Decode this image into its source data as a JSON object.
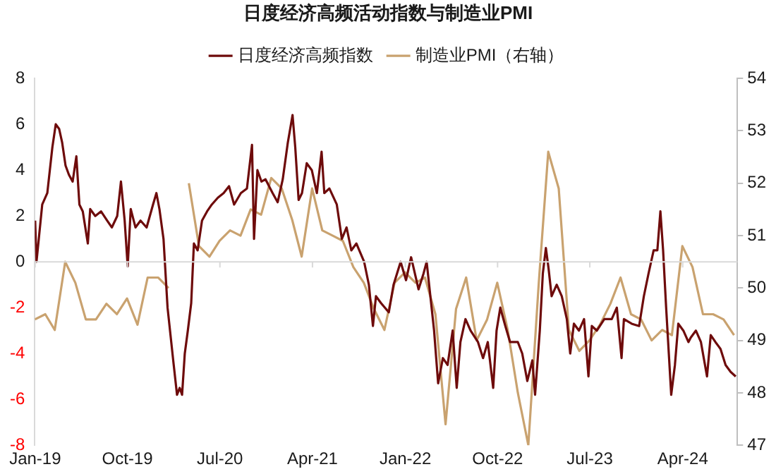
{
  "chart_data": {
    "type": "line",
    "title": "日度经济高频活动指数与制造业PMI",
    "legend": "top",
    "grid": false,
    "marker": "none",
    "line_style": "solid",
    "xlim": [
      "2018-12-31",
      "2024-09-10"
    ],
    "xticks": [
      {
        "value": "2019-01-01",
        "label": "Jan-19"
      },
      {
        "value": "2019-10-01",
        "label": "Oct-19"
      },
      {
        "value": "2020-07-01",
        "label": "Jul-20"
      },
      {
        "value": "2021-04-01",
        "label": "Apr-21"
      },
      {
        "value": "2022-01-01",
        "label": "Jan-22"
      },
      {
        "value": "2022-10-01",
        "label": "Oct-22"
      },
      {
        "value": "2023-07-01",
        "label": "Jul-23"
      },
      {
        "value": "2024-04-01",
        "label": "Apr-24"
      }
    ],
    "ref_lines": [
      {
        "axis": "y",
        "value": 0,
        "color": "#d9d9d9"
      }
    ],
    "ylim": [
      -8,
      8
    ],
    "yticks": [
      -8,
      -6,
      -4,
      -2,
      0,
      2,
      4,
      6,
      8
    ],
    "y2lim": [
      47,
      54
    ],
    "y2ticks": [
      47,
      48,
      49,
      50,
      51,
      52,
      53,
      54
    ],
    "series": [
      {
        "name": "日度经济高频指数",
        "color": "#6e0b0b",
        "x": [
          "2019-01-01",
          "2019-01-05",
          "2019-01-22",
          "2019-02-06",
          "2019-02-21",
          "2019-03-03",
          "2019-03-13",
          "2019-03-22",
          "2019-04-01",
          "2019-04-11",
          "2019-04-22",
          "2019-05-03",
          "2019-05-12",
          "2019-05-22",
          "2019-06-06",
          "2019-06-13",
          "2019-06-28",
          "2019-07-15",
          "2019-08-02",
          "2019-08-16",
          "2019-09-01",
          "2019-09-12",
          "2019-09-23",
          "2019-10-02",
          "2019-10-11",
          "2019-10-25",
          "2019-11-09",
          "2019-11-27",
          "2019-12-16",
          "2019-12-26",
          "2020-01-04",
          "2020-01-16",
          "2020-01-28",
          "2020-02-13",
          "2020-02-25",
          "2020-03-04",
          "2020-03-11",
          "2020-03-19",
          "2020-03-28",
          "2020-04-07",
          "2020-04-15",
          "2020-04-26",
          "2020-05-09",
          "2020-05-24",
          "2020-06-07",
          "2020-06-25",
          "2020-07-12",
          "2020-07-28",
          "2020-08-12",
          "2020-09-01",
          "2020-09-19",
          "2020-10-04",
          "2020-10-10",
          "2020-10-20",
          "2020-11-01",
          "2020-11-13",
          "2020-12-04",
          "2020-12-19",
          "2021-01-03",
          "2021-01-18",
          "2021-02-01",
          "2021-02-09",
          "2021-02-19",
          "2021-03-01",
          "2021-03-15",
          "2021-03-30",
          "2021-04-14",
          "2021-04-28",
          "2021-05-06",
          "2021-05-21",
          "2021-06-12",
          "2021-06-27",
          "2021-07-11",
          "2021-07-25",
          "2021-08-09",
          "2021-09-01",
          "2021-09-15",
          "2021-09-27",
          "2021-10-06",
          "2021-10-21",
          "2021-11-13",
          "2021-11-27",
          "2021-12-18",
          "2022-01-03",
          "2022-01-18",
          "2022-02-09",
          "2022-02-24",
          "2022-03-05",
          "2022-03-16",
          "2022-03-27",
          "2022-04-08",
          "2022-04-22",
          "2022-05-06",
          "2022-05-21",
          "2022-06-02",
          "2022-06-13",
          "2022-06-28",
          "2022-07-13",
          "2022-08-04",
          "2022-08-19",
          "2022-09-02",
          "2022-09-18",
          "2022-09-28",
          "2022-10-09",
          "2022-10-24",
          "2022-11-07",
          "2022-11-30",
          "2022-12-13",
          "2022-12-28",
          "2023-01-12",
          "2023-01-20",
          "2023-02-03",
          "2023-02-12",
          "2023-02-21",
          "2023-03-01",
          "2023-03-10",
          "2023-03-25",
          "2023-04-09",
          "2023-04-24",
          "2023-05-04",
          "2023-05-15",
          "2023-05-30",
          "2023-06-14",
          "2023-06-27",
          "2023-07-07",
          "2023-07-22",
          "2023-08-13",
          "2023-09-04",
          "2023-09-19",
          "2023-10-03",
          "2023-10-10",
          "2023-11-02",
          "2023-11-24",
          "2023-12-08",
          "2023-12-22",
          "2024-01-06",
          "2024-01-17",
          "2024-01-26",
          "2024-02-03",
          "2024-02-12",
          "2024-02-27",
          "2024-03-09",
          "2024-03-19",
          "2024-04-03",
          "2024-04-18",
          "2024-04-25",
          "2024-05-10",
          "2024-05-25",
          "2024-06-12",
          "2024-06-23",
          "2024-07-07",
          "2024-07-22",
          "2024-08-06",
          "2024-08-21",
          "2024-09-05"
        ],
        "values": [
          1.8,
          0,
          2.5,
          3,
          5,
          6,
          5.8,
          5.2,
          4.2,
          3.8,
          3.5,
          4.6,
          2.5,
          2.2,
          0.8,
          2.3,
          2,
          2.2,
          1.8,
          1.5,
          2,
          3.5,
          1.8,
          -0.2,
          2.3,
          1.5,
          1.8,
          1.5,
          2.5,
          3,
          2.3,
          1,
          -2,
          -4.2,
          -5.8,
          -5.5,
          -5.8,
          -4,
          -3,
          -1.8,
          0.8,
          0.5,
          1.8,
          2.2,
          2.5,
          2.8,
          3,
          3.3,
          2.5,
          3,
          3.2,
          5.1,
          1,
          4,
          3.5,
          3.6,
          3,
          2.6,
          3.6,
          5.2,
          6.4,
          5,
          2.7,
          3,
          4.3,
          4,
          3,
          4.8,
          3,
          3.2,
          2.5,
          1,
          1.5,
          0.5,
          0.8,
          0,
          -1,
          -2.8,
          -1.5,
          -1.8,
          -2.2,
          -1,
          0,
          -0.8,
          0.2,
          -1.2,
          -0.5,
          0,
          -1.5,
          -3,
          -5.3,
          -4.2,
          -4.5,
          -3,
          -5.5,
          -3.5,
          -2.5,
          -3,
          -3.5,
          -4.2,
          -3.5,
          -5.5,
          -3,
          -2,
          -2.8,
          -3.5,
          -3.5,
          -4,
          -5.2,
          -4.3,
          -5.8,
          -3,
          -0.5,
          0.6,
          -0.3,
          -1.5,
          -1,
          -1.5,
          -2.5,
          -4,
          -2.7,
          -3,
          -2.5,
          -5,
          -2.8,
          -3,
          -2.5,
          -2.5,
          -2,
          -4.2,
          -2.5,
          -2.7,
          -2.8,
          -1.5,
          -0.5,
          0.5,
          0.5,
          2.2,
          0.5,
          -2,
          -5.8,
          -4.5,
          -2.7,
          -3,
          -3.5,
          -3.3,
          -3,
          -3.5,
          -5,
          -3.2,
          -3.5,
          -3.8,
          -4.5,
          -4.8,
          -5
        ]
      },
      {
        "name": "制造业PMI（右轴）",
        "color": "#c9a26f",
        "axis": "y2",
        "x": [
          "2018-12-31",
          "2019-01-31",
          "2019-02-28",
          "2019-03-31",
          "2019-04-30",
          "2019-05-31",
          "2019-06-30",
          "2019-07-31",
          "2019-08-31",
          "2019-09-30",
          "2019-10-31",
          "2019-11-30",
          "2019-12-31",
          "2020-01-31",
          "2020-02-29",
          "2020-03-31",
          "2020-04-30",
          "2020-05-31",
          "2020-06-30",
          "2020-07-31",
          "2020-08-31",
          "2020-09-30",
          "2020-10-31",
          "2020-11-30",
          "2020-12-31",
          "2021-01-31",
          "2021-02-28",
          "2021-03-31",
          "2021-04-30",
          "2021-05-31",
          "2021-06-30",
          "2021-07-31",
          "2021-08-31",
          "2021-09-30",
          "2021-10-31",
          "2021-11-30",
          "2021-12-31",
          "2022-01-31",
          "2022-02-28",
          "2022-03-31",
          "2022-04-30",
          "2022-05-31",
          "2022-06-30",
          "2022-07-31",
          "2022-08-31",
          "2022-09-30",
          "2022-10-31",
          "2022-11-30",
          "2022-12-31",
          "2023-01-31",
          "2023-02-28",
          "2023-03-31",
          "2023-04-30",
          "2023-05-31",
          "2023-06-30",
          "2023-07-31",
          "2023-08-31",
          "2023-09-30",
          "2023-10-31",
          "2023-11-30",
          "2023-12-31",
          "2024-01-31",
          "2024-02-29",
          "2024-03-31",
          "2024-04-30",
          "2024-05-31",
          "2024-06-30",
          "2024-07-31",
          "2024-08-31"
        ],
        "values": [
          49.4,
          49.5,
          49.2,
          50.5,
          50.1,
          49.4,
          49.4,
          49.7,
          49.5,
          49.8,
          49.3,
          50.2,
          50.2,
          50.0,
          null,
          52.0,
          50.8,
          50.6,
          50.9,
          51.1,
          51.0,
          51.5,
          51.4,
          52.1,
          51.9,
          51.3,
          50.6,
          51.9,
          51.1,
          51.0,
          50.9,
          50.4,
          50.1,
          49.6,
          49.2,
          50.1,
          50.3,
          50.1,
          50.2,
          49.5,
          47.4,
          49.6,
          50.2,
          49.0,
          49.4,
          50.1,
          49.2,
          48.0,
          47.0,
          50.1,
          52.6,
          51.9,
          49.2,
          48.8,
          49.0,
          49.3,
          49.7,
          50.2,
          49.5,
          49.4,
          49.0,
          49.2,
          49.1,
          50.8,
          50.4,
          49.5,
          49.5,
          49.4,
          49.1
        ]
      }
    ]
  }
}
